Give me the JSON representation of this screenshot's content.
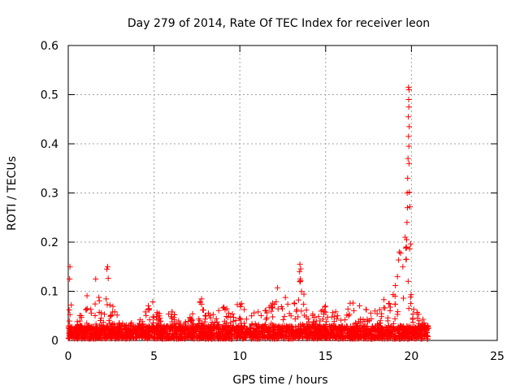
{
  "chart_data": {
    "type": "scatter",
    "title": "Day 279 of 2014, Rate Of TEC Index for receiver leon",
    "xlabel": "GPS time / hours",
    "ylabel": "ROTI / TECUs",
    "xlim": [
      0,
      25
    ],
    "ylim": [
      0,
      0.6
    ],
    "xticks": [
      0,
      5,
      10,
      15,
      20,
      25
    ],
    "yticks": [
      0,
      0.1,
      0.2,
      0.3,
      0.4,
      0.5,
      0.6
    ],
    "xtick_labels": [
      "0",
      "5",
      "10",
      "15",
      "20",
      "25"
    ],
    "ytick_labels": [
      "0",
      "0.1",
      "0.2",
      "0.3",
      "0.4",
      "0.5",
      "0.6"
    ],
    "grid": true,
    "marker": "+",
    "marker_color": "#ff0000",
    "series": [
      {
        "name": "ROTI",
        "description": "dense scatter of ROTI values from 0 to 21 h",
        "background_band": {
          "x_range": [
            0,
            21
          ],
          "y_typical": [
            0,
            0.03
          ]
        },
        "envelope": [
          {
            "x": 0.0,
            "y": 0.03
          },
          {
            "x": 0.1,
            "y": 0.15
          },
          {
            "x": 0.2,
            "y": 0.07
          },
          {
            "x": 0.6,
            "y": 0.04
          },
          {
            "x": 1.0,
            "y": 0.1
          },
          {
            "x": 1.4,
            "y": 0.07
          },
          {
            "x": 1.6,
            "y": 0.12
          },
          {
            "x": 2.0,
            "y": 0.05
          },
          {
            "x": 2.3,
            "y": 0.15
          },
          {
            "x": 2.6,
            "y": 0.07
          },
          {
            "x": 3.0,
            "y": 0.04
          },
          {
            "x": 3.5,
            "y": 0.03
          },
          {
            "x": 4.0,
            "y": 0.05
          },
          {
            "x": 4.5,
            "y": 0.07
          },
          {
            "x": 5.0,
            "y": 0.08
          },
          {
            "x": 5.5,
            "y": 0.04
          },
          {
            "x": 6.0,
            "y": 0.06
          },
          {
            "x": 6.5,
            "y": 0.04
          },
          {
            "x": 7.0,
            "y": 0.05
          },
          {
            "x": 7.5,
            "y": 0.06
          },
          {
            "x": 7.8,
            "y": 0.09
          },
          {
            "x": 8.5,
            "y": 0.05
          },
          {
            "x": 9.0,
            "y": 0.07
          },
          {
            "x": 9.5,
            "y": 0.06
          },
          {
            "x": 10.0,
            "y": 0.08
          },
          {
            "x": 10.5,
            "y": 0.06
          },
          {
            "x": 11.0,
            "y": 0.07
          },
          {
            "x": 11.5,
            "y": 0.06
          },
          {
            "x": 12.0,
            "y": 0.09
          },
          {
            "x": 12.3,
            "y": 0.12
          },
          {
            "x": 12.6,
            "y": 0.09
          },
          {
            "x": 13.0,
            "y": 0.07
          },
          {
            "x": 13.5,
            "y": 0.155
          },
          {
            "x": 14.0,
            "y": 0.06
          },
          {
            "x": 14.5,
            "y": 0.05
          },
          {
            "x": 15.0,
            "y": 0.07
          },
          {
            "x": 15.5,
            "y": 0.06
          },
          {
            "x": 16.0,
            "y": 0.05
          },
          {
            "x": 16.5,
            "y": 0.08
          },
          {
            "x": 17.0,
            "y": 0.07
          },
          {
            "x": 17.5,
            "y": 0.06
          },
          {
            "x": 18.0,
            "y": 0.06
          },
          {
            "x": 18.5,
            "y": 0.09
          },
          {
            "x": 19.0,
            "y": 0.12
          },
          {
            "x": 19.3,
            "y": 0.18
          },
          {
            "x": 19.6,
            "y": 0.2
          },
          {
            "x": 19.75,
            "y": 0.35
          },
          {
            "x": 19.85,
            "y": 0.515
          },
          {
            "x": 20.0,
            "y": 0.07
          },
          {
            "x": 20.5,
            "y": 0.05
          },
          {
            "x": 21.0,
            "y": 0.03
          }
        ],
        "spike_points": [
          {
            "x": 19.83,
            "y": 0.515
          },
          {
            "x": 19.86,
            "y": 0.51
          },
          {
            "x": 19.84,
            "y": 0.49
          },
          {
            "x": 19.85,
            "y": 0.475
          },
          {
            "x": 19.82,
            "y": 0.455
          },
          {
            "x": 19.87,
            "y": 0.435
          },
          {
            "x": 19.83,
            "y": 0.415
          },
          {
            "x": 19.85,
            "y": 0.395
          },
          {
            "x": 19.8,
            "y": 0.37
          },
          {
            "x": 19.86,
            "y": 0.36
          },
          {
            "x": 19.78,
            "y": 0.33
          },
          {
            "x": 19.75,
            "y": 0.3
          },
          {
            "x": 19.77,
            "y": 0.27
          },
          {
            "x": 19.74,
            "y": 0.24
          },
          {
            "x": 19.72,
            "y": 0.205
          },
          {
            "x": 19.7,
            "y": 0.19
          },
          {
            "x": 19.68,
            "y": 0.165
          },
          {
            "x": 19.3,
            "y": 0.18
          },
          {
            "x": 19.5,
            "y": 0.15
          },
          {
            "x": 0.1,
            "y": 0.15
          },
          {
            "x": 0.08,
            "y": 0.125
          },
          {
            "x": 2.3,
            "y": 0.15
          },
          {
            "x": 2.25,
            "y": 0.145
          },
          {
            "x": 1.6,
            "y": 0.125
          },
          {
            "x": 13.5,
            "y": 0.155
          },
          {
            "x": 13.48,
            "y": 0.14
          },
          {
            "x": 13.52,
            "y": 0.125
          },
          {
            "x": 13.5,
            "y": 0.12
          }
        ]
      }
    ]
  }
}
